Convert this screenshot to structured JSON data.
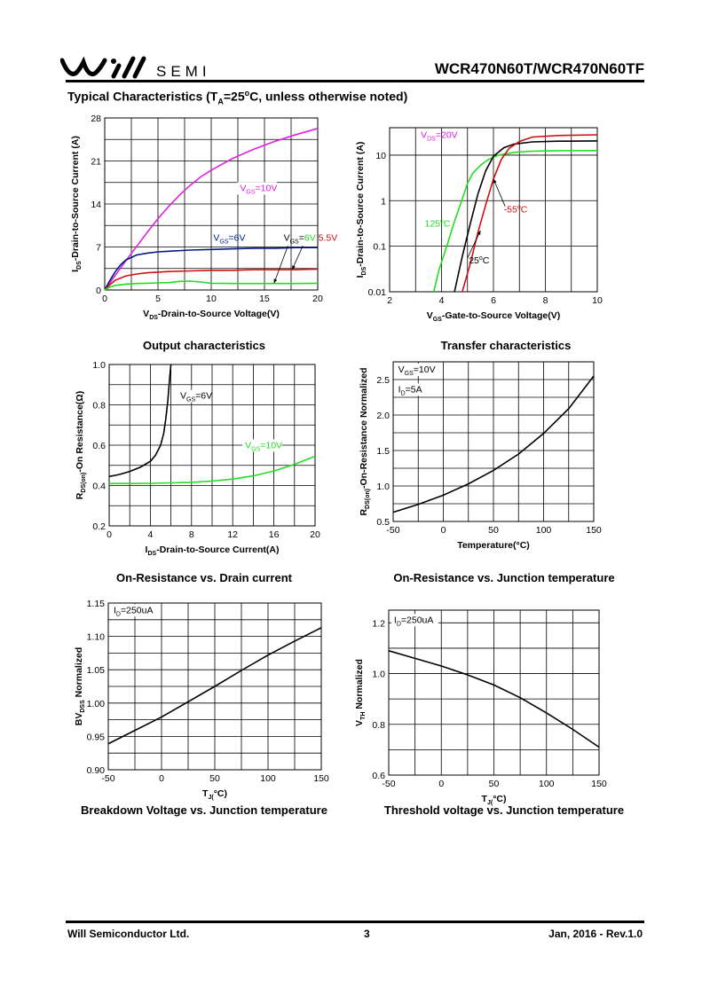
{
  "header": {
    "logo_text": "SEMI",
    "part_number": "WCR470N60T/WCR470N60TF",
    "section_title_pre": "Typical Characteristics (T",
    "section_title_sub": "A",
    "section_title_mid": "=25",
    "section_title_sup": "o",
    "section_title_post": "C, unless otherwise noted)"
  },
  "footer": {
    "company": "Will Semiconductor Ltd.",
    "page": "3",
    "date_rev": "Jan, 2016 - Rev.1.0"
  },
  "colors": {
    "magenta": "#e020e0",
    "navy": "#001a80",
    "red": "#d01010",
    "green": "#22dd22",
    "black": "#000000"
  },
  "chart_data": [
    {
      "id": "output",
      "type": "line",
      "title": "Output characteristics",
      "xlabel": "V_DS-Drain-to-Source Voltage(V)",
      "ylabel": "I_DS-Drain-to-Source Current (A)",
      "xlim": [
        0,
        20
      ],
      "ylim": [
        0,
        28
      ],
      "xticks": [
        0,
        5,
        10,
        15,
        20
      ],
      "yticks": [
        0,
        7,
        14,
        21,
        28
      ],
      "xgrid": [
        0,
        2.5,
        5,
        7.5,
        10,
        12.5,
        15,
        17.5,
        20
      ],
      "ygrid": [
        0,
        3.5,
        7,
        10.5,
        14,
        17.5,
        21,
        24.5,
        28
      ],
      "grid": true,
      "series": [
        {
          "name": "V_GS=10V",
          "color": "#e020e0",
          "x": [
            0,
            1,
            2,
            3,
            4,
            5,
            6,
            7,
            8,
            9,
            10,
            12,
            14,
            16,
            18,
            20
          ],
          "y": [
            0,
            2.4,
            4.8,
            7.1,
            9.4,
            11.6,
            13.6,
            15.4,
            17,
            18.4,
            19.5,
            21.4,
            22.9,
            24.2,
            25.3,
            26.3
          ]
        },
        {
          "name": "V_GS=6V",
          "color": "#001a80",
          "x": [
            0,
            0.5,
            1,
            1.5,
            2,
            3,
            4,
            5,
            6,
            8,
            10,
            12,
            14,
            16,
            18,
            20
          ],
          "y": [
            0,
            1.6,
            3,
            4.1,
            4.9,
            5.7,
            6,
            6.2,
            6.3,
            6.5,
            6.6,
            6.7,
            6.8,
            6.8,
            6.9,
            6.9
          ]
        },
        {
          "name": "5.5V",
          "color": "#d01010",
          "x": [
            0,
            0.5,
            1,
            2,
            3,
            4,
            5,
            6,
            8,
            10,
            12,
            14,
            16,
            18,
            20
          ],
          "y": [
            0,
            0.9,
            1.6,
            2.3,
            2.6,
            2.8,
            2.9,
            3,
            3.1,
            3.2,
            3.2,
            3.3,
            3.3,
            3.3,
            3.4
          ]
        },
        {
          "name": "",
          "color": "#22dd22",
          "x": [
            0,
            0.5,
            1,
            2,
            3,
            4,
            5,
            6,
            7,
            8,
            9,
            10,
            12,
            14,
            16,
            18,
            20
          ],
          "y": [
            0,
            0.5,
            0.75,
            0.95,
            1.05,
            1.1,
            1.15,
            1.2,
            1.4,
            1.45,
            1.3,
            1.1,
            1.05,
            1.05,
            1.05,
            1.05,
            1.1
          ]
        }
      ],
      "labels": [
        {
          "pre": "V",
          "sub": "GS",
          "post": "=10V",
          "x": 12.7,
          "y": 16.1,
          "color": "#e020e0",
          "bg": true
        },
        {
          "pre": "V",
          "sub": "GS",
          "post": "=6V",
          "x": 10.2,
          "y": 8.0,
          "color": "#001a80",
          "bg": false
        },
        {
          "pre": "V",
          "sub": "GS",
          "post": "=",
          "x": 16.8,
          "y": 8.0,
          "color": "#000000",
          "bg": false,
          "extra": [
            {
              "t": "6V",
              "c": "#22dd22"
            },
            {
              "t": " ",
              "c": "#000000"
            },
            {
              "t": "5.5V",
              "c": "#d01010"
            }
          ]
        }
      ],
      "arrows": [
        {
          "x1": 17.2,
          "y1": 7.2,
          "x2": 15.9,
          "y2": 1.1
        },
        {
          "x1": 18.6,
          "y1": 7.2,
          "x2": 17.6,
          "y2": 3.3
        }
      ]
    },
    {
      "id": "transfer",
      "type": "line",
      "title": "Transfer characteristics",
      "xlabel": "V_GS-Gate-to-Source Voltage(V)",
      "ylabel": "I_DS-Drain-to-Source Current (A)",
      "xlim": [
        2,
        10
      ],
      "ylim": [
        0.01,
        40
      ],
      "yscale": "log",
      "xticks": [
        2,
        4,
        6,
        8,
        10
      ],
      "yticks": [
        0.01,
        0.1,
        1,
        10
      ],
      "ytick_labels": [
        "0.01",
        "0.1",
        "1",
        "10"
      ],
      "xgrid": [
        2,
        3,
        4,
        5,
        6,
        7,
        8,
        9,
        10
      ],
      "ygrid": [
        0.01,
        0.1,
        1,
        10
      ],
      "grid": true,
      "series": [
        {
          "name": "125°C",
          "color": "#22dd22",
          "x": [
            3.7,
            3.9,
            4.2,
            4.5,
            4.8,
            5.0,
            5.2,
            5.5,
            5.8,
            6.2,
            6.8,
            7.5,
            8.5,
            10
          ],
          "y": [
            0.01,
            0.03,
            0.1,
            0.35,
            1.1,
            2.4,
            4.0,
            6.0,
            8.0,
            10.0,
            11.5,
            12.2,
            12.5,
            12.6
          ]
        },
        {
          "name": "25°C",
          "color": "#000000",
          "x": [
            4.5,
            4.8,
            5.1,
            5.4,
            5.7,
            6.0,
            6.4,
            6.8,
            7.5,
            8.5,
            10
          ],
          "y": [
            0.01,
            0.06,
            0.3,
            1.4,
            4.5,
            9.5,
            14.5,
            17.5,
            19.5,
            20.2,
            20.5
          ]
        },
        {
          "name": "-55°C",
          "color": "#d01010",
          "x": [
            4.8,
            5.1,
            5.4,
            5.7,
            6.0,
            6.3,
            6.6,
            7.0,
            7.5,
            8.5,
            10
          ],
          "y": [
            0.01,
            0.04,
            0.2,
            0.8,
            3.0,
            8.0,
            14.0,
            20.0,
            25.0,
            27.0,
            28.0
          ]
        }
      ],
      "labels": [
        {
          "pre": "V",
          "sub": "DS",
          "post": "=20V",
          "x": 3.2,
          "y": 24,
          "color": "#e020e0",
          "bg": false
        },
        {
          "pre": "125",
          "sup": "o",
          "post": "C",
          "x": 3.35,
          "y": 0.27,
          "color": "#22dd22",
          "bg": false
        },
        {
          "pre": "-55",
          "sup": "o",
          "post": "C",
          "x": 6.4,
          "y": 0.55,
          "color": "#d01010",
          "bg": false
        },
        {
          "pre": "25",
          "sup": "o",
          "post": "C",
          "x": 5.05,
          "y": 0.042,
          "color": "#000000",
          "bg": false
        }
      ],
      "arrows": [
        {
          "x1": 6.45,
          "y1": 0.75,
          "x2": 6.0,
          "y2": 3.0
        },
        {
          "x1": 5.0,
          "y1": 0.055,
          "x2": 5.5,
          "y2": 0.22
        }
      ]
    },
    {
      "id": "ron_id",
      "type": "line",
      "title": "On-Resistance vs. Drain current",
      "xlabel": "I_DS-Drain-to-Source Current(A)",
      "ylabel": "R_DS(on)-On Resistance(Ω)",
      "xlim": [
        0,
        20
      ],
      "ylim": [
        0.2,
        1.0
      ],
      "xticks": [
        0,
        4,
        8,
        12,
        16,
        20
      ],
      "yticks": [
        0.2,
        0.4,
        0.6,
        0.8,
        1.0
      ],
      "ytick_labels": [
        "0.2",
        "0.4",
        "0.6",
        "0.8",
        "1.0"
      ],
      "xgrid": [
        0,
        2,
        4,
        6,
        8,
        10,
        12,
        14,
        16,
        18,
        20
      ],
      "ygrid": [
        0.2,
        0.3,
        0.4,
        0.5,
        0.6,
        0.7,
        0.8,
        0.9,
        1.0
      ],
      "grid": true,
      "series": [
        {
          "name": "V_GS=6V",
          "color": "#000000",
          "x": [
            0,
            1,
            2,
            3,
            4,
            4.5,
            5,
            5.3,
            5.5,
            5.7,
            5.85,
            6.0
          ],
          "y": [
            0.445,
            0.455,
            0.47,
            0.49,
            0.52,
            0.55,
            0.6,
            0.66,
            0.73,
            0.82,
            0.92,
            1.0
          ]
        },
        {
          "name": "V_GS=10V",
          "color": "#22dd22",
          "x": [
            0,
            2,
            4,
            6,
            8,
            10,
            12,
            14,
            16,
            18,
            20
          ],
          "y": [
            0.41,
            0.41,
            0.411,
            0.413,
            0.416,
            0.422,
            0.432,
            0.448,
            0.472,
            0.505,
            0.545
          ]
        }
      ],
      "labels": [
        {
          "pre": "V",
          "sub": "GS",
          "post": "=6V",
          "x": 6.9,
          "y": 0.83,
          "color": "#000000",
          "bg": true
        },
        {
          "pre": "V",
          "sub": "GS",
          "post": "=10V",
          "x": 13.2,
          "y": 0.585,
          "color": "#22dd22",
          "bg": true
        }
      ],
      "arrows": []
    },
    {
      "id": "ron_temp",
      "type": "line",
      "title": "On-Resistance vs. Junction temperature",
      "xlabel": "Temperature(°C)",
      "ylabel": "R_DS(on)-On-Resistance Normalized",
      "xlim": [
        -50,
        150
      ],
      "ylim": [
        0.5,
        2.75
      ],
      "xticks": [
        -50,
        0,
        50,
        100,
        150
      ],
      "yticks": [
        0.5,
        1.0,
        1.5,
        2.0,
        2.5
      ],
      "ytick_labels": [
        "0.5",
        "1.0",
        "1.5",
        "2.0",
        "2.5"
      ],
      "xgrid": [
        -50,
        -25,
        0,
        25,
        50,
        75,
        100,
        125,
        150
      ],
      "ygrid": [
        0.5,
        0.75,
        1.0,
        1.25,
        1.5,
        1.75,
        2.0,
        2.25,
        2.5,
        2.75
      ],
      "grid": true,
      "series": [
        {
          "name": "",
          "color": "#000000",
          "x": [
            -50,
            -25,
            0,
            25,
            50,
            75,
            100,
            125,
            150
          ],
          "y": [
            0.63,
            0.74,
            0.87,
            1.03,
            1.22,
            1.45,
            1.74,
            2.09,
            2.55
          ]
        }
      ],
      "labels": [
        {
          "pre": "V",
          "sub": "GS",
          "post": "=10V",
          "x": -45,
          "y": 2.6,
          "color": "#000000",
          "bg": true
        },
        {
          "pre": "I",
          "sub": "D",
          "post": "=5A",
          "x": -45,
          "y": 2.32,
          "color": "#000000",
          "bg": true
        }
      ],
      "arrows": []
    },
    {
      "id": "bv_temp",
      "type": "line",
      "title": "Breakdown Voltage vs. Junction temperature",
      "xlabel": "T_J(°C)",
      "ylabel": "BV_DSS Normalized",
      "xlim": [
        -50,
        150
      ],
      "ylim": [
        0.9,
        1.15
      ],
      "xticks": [
        -50,
        0,
        50,
        100,
        150
      ],
      "yticks": [
        0.9,
        0.95,
        1.0,
        1.05,
        1.1,
        1.15
      ],
      "ytick_labels": [
        "0.90",
        "0.95",
        "1.00",
        "1.05",
        "1.10",
        "1.15"
      ],
      "xgrid": [
        -50,
        -25,
        0,
        25,
        50,
        75,
        100,
        125,
        150
      ],
      "ygrid": [
        0.9,
        0.925,
        0.95,
        0.975,
        1.0,
        1.025,
        1.05,
        1.075,
        1.1,
        1.125,
        1.15
      ],
      "grid": true,
      "series": [
        {
          "name": "",
          "color": "#000000",
          "x": [
            -50,
            -25,
            0,
            25,
            50,
            75,
            100,
            125,
            150
          ],
          "y": [
            0.939,
            0.959,
            0.979,
            1.002,
            1.025,
            1.049,
            1.072,
            1.093,
            1.113
          ]
        }
      ],
      "labels": [
        {
          "pre": "I",
          "sub": "D",
          "post": "=250uA",
          "x": -45,
          "y": 1.135,
          "color": "#000000",
          "bg": true
        }
      ],
      "arrows": []
    },
    {
      "id": "vth_temp",
      "type": "line",
      "title": "Threshold voltage vs. Junction temperature",
      "xlabel": "T_J(°C)",
      "ylabel": "V_TH Normalized",
      "xlim": [
        -50,
        150
      ],
      "ylim": [
        0.6,
        1.25
      ],
      "xticks": [
        -50,
        0,
        50,
        100,
        150
      ],
      "yticks": [
        0.6,
        0.8,
        1.0,
        1.2
      ],
      "ytick_labels": [
        "0.6",
        "0.8",
        "1.0",
        "1.2"
      ],
      "xgrid": [
        -50,
        -25,
        0,
        25,
        50,
        75,
        100,
        125,
        150
      ],
      "ygrid": [
        0.6,
        0.7,
        0.8,
        0.9,
        1.0,
        1.1,
        1.2
      ],
      "grid": true,
      "series": [
        {
          "name": "",
          "color": "#000000",
          "x": [
            -50,
            -25,
            0,
            25,
            50,
            75,
            100,
            125,
            150
          ],
          "y": [
            1.09,
            1.06,
            1.03,
            0.995,
            0.955,
            0.905,
            0.845,
            0.78,
            0.71
          ]
        }
      ],
      "labels": [
        {
          "pre": "I",
          "sub": "D",
          "post": "=250uA",
          "x": -45,
          "y": 1.2,
          "color": "#000000",
          "bg": true
        }
      ],
      "arrows": []
    }
  ]
}
